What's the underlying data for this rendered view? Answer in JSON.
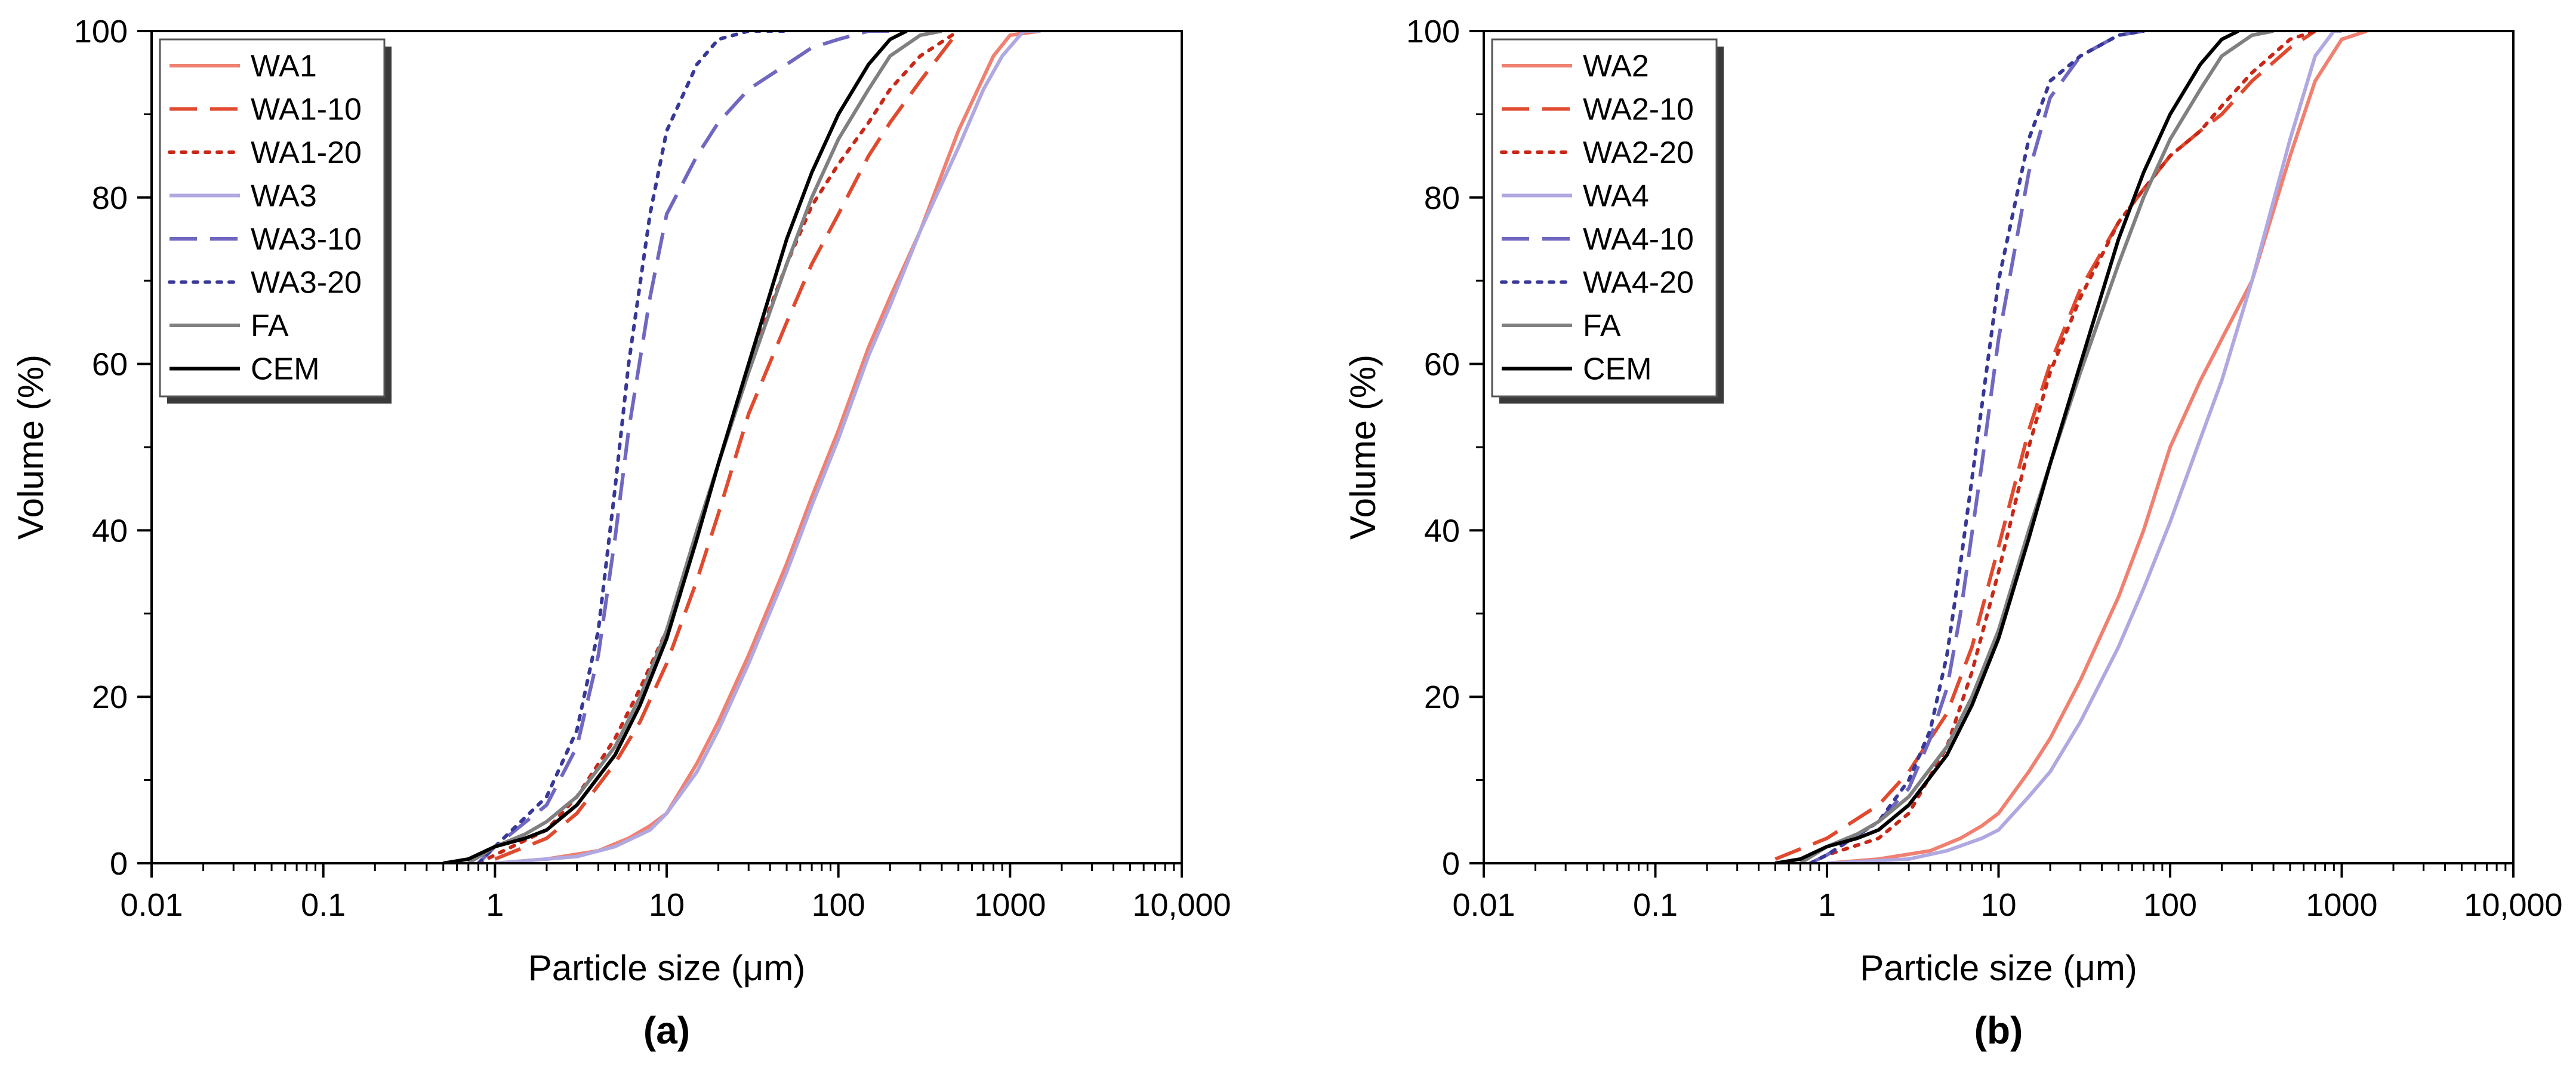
{
  "colors": {
    "red": "#f08070",
    "red_dark": "#e04a2e",
    "red_dot": "#c82818",
    "purple_light": "#b0a8e0",
    "purple": "#7068c0",
    "navy": "#383898",
    "gray": "#808080",
    "black": "#000000"
  },
  "chart_data": [
    {
      "type": "line",
      "panel_label": "(a)",
      "xlabel": "Particle size (μm)",
      "ylabel": "Volume (%)",
      "xscale": "log",
      "xlim": [
        0.01,
        10000
      ],
      "ylim": [
        0,
        100
      ],
      "x_tick_labels": [
        "0.01",
        "0.1",
        "1",
        "10",
        "100",
        "1000",
        "10,000"
      ],
      "y_tick_labels": [
        "0",
        "20",
        "40",
        "60",
        "80",
        "100"
      ],
      "legend_position": "top-left",
      "series": [
        {
          "name": "WA1",
          "color": "red",
          "style": "solid",
          "x": [
            1,
            2,
            4,
            6,
            8,
            10,
            15,
            20,
            30,
            50,
            70,
            100,
            150,
            200,
            300,
            500,
            800,
            1000,
            1500
          ],
          "y": [
            0,
            0.5,
            1.5,
            3,
            4.5,
            6,
            12,
            17,
            25,
            36,
            44,
            52,
            62,
            68,
            76,
            88,
            97,
            99.5,
            100
          ]
        },
        {
          "name": "WA1-10",
          "color": "red_dark",
          "style": "dashed",
          "x": [
            1,
            2,
            3,
            5,
            7,
            10,
            15,
            20,
            30,
            50,
            70,
            100,
            150,
            200,
            300,
            500
          ],
          "y": [
            0.5,
            3,
            6,
            12,
            17,
            24,
            34,
            42,
            54,
            65,
            72,
            78,
            85,
            89,
            94,
            100
          ]
        },
        {
          "name": "WA1-20",
          "color": "red_dot",
          "style": "dotted",
          "x": [
            0.8,
            1,
            2,
            3,
            5,
            7,
            10,
            15,
            20,
            30,
            50,
            70,
            100,
            150,
            200,
            300,
            500
          ],
          "y": [
            0,
            1,
            4,
            8,
            15,
            21,
            28,
            40,
            48,
            60,
            72,
            79,
            84,
            89,
            93,
            97,
            100
          ]
        },
        {
          "name": "WA3",
          "color": "purple_light",
          "style": "solid",
          "x": [
            1,
            3,
            5,
            8,
            10,
            15,
            20,
            30,
            50,
            70,
            100,
            150,
            200,
            300,
            500,
            700,
            900,
            1200,
            1500
          ],
          "y": [
            0,
            0.8,
            2,
            4,
            6,
            11,
            16,
            24,
            35,
            43,
            51,
            61,
            67,
            76,
            86,
            93,
            97,
            100,
            100
          ]
        },
        {
          "name": "WA3-10",
          "color": "purple",
          "style": "dashed",
          "x": [
            0.8,
            1,
            2,
            3,
            4,
            5,
            6,
            8,
            10,
            15,
            20,
            30,
            50,
            70,
            100,
            150,
            200
          ],
          "y": [
            0,
            2,
            7,
            14,
            25,
            39,
            52,
            68,
            78,
            85,
            89,
            93,
            96,
            98,
            99,
            100,
            100
          ]
        },
        {
          "name": "WA3-20",
          "color": "navy",
          "style": "dotted",
          "x": [
            0.8,
            1,
            2,
            3,
            4,
            5,
            6,
            8,
            10,
            15,
            20,
            30,
            50
          ],
          "y": [
            0,
            2,
            8,
            16,
            28,
            45,
            60,
            78,
            88,
            96,
            99,
            100,
            100
          ]
        },
        {
          "name": "FA",
          "color": "gray",
          "style": "solid",
          "x": [
            0.7,
            1,
            1.5,
            2,
            3,
            5,
            7,
            10,
            15,
            20,
            30,
            50,
            70,
            100,
            150,
            200,
            300,
            400
          ],
          "y": [
            0,
            2,
            3.5,
            5,
            8,
            14,
            20,
            28,
            40,
            48,
            59,
            72,
            80,
            87,
            93,
            97,
            99.5,
            100
          ]
        },
        {
          "name": "CEM",
          "color": "black",
          "style": "solid",
          "x": [
            0.5,
            0.7,
            1,
            1.5,
            2,
            3,
            5,
            7,
            10,
            15,
            20,
            30,
            50,
            70,
            100,
            150,
            200,
            250
          ],
          "y": [
            0,
            0.5,
            2,
            3,
            4,
            7,
            13,
            19,
            27,
            39,
            48,
            60,
            75,
            83,
            90,
            96,
            99,
            100
          ]
        }
      ]
    },
    {
      "type": "line",
      "panel_label": "(b)",
      "xlabel": "Particle size (μm)",
      "ylabel": "Volume (%)",
      "xscale": "log",
      "xlim": [
        0.01,
        10000
      ],
      "ylim": [
        0,
        100
      ],
      "x_tick_labels": [
        "0.01",
        "0.1",
        "1",
        "10",
        "100",
        "1000",
        "10,000"
      ],
      "y_tick_labels": [
        "0",
        "20",
        "40",
        "60",
        "80",
        "100"
      ],
      "legend_position": "top-left",
      "series": [
        {
          "name": "WA2",
          "color": "red",
          "style": "solid",
          "x": [
            1,
            2,
            4,
            6,
            8,
            10,
            15,
            20,
            30,
            50,
            70,
            100,
            150,
            200,
            300,
            500,
            700,
            1000,
            1400
          ],
          "y": [
            0,
            0.5,
            1.5,
            3,
            4.5,
            6,
            11,
            15,
            22,
            32,
            40,
            50,
            58,
            63,
            70,
            85,
            94,
            99,
            100
          ]
        },
        {
          "name": "WA2-10",
          "color": "red_dark",
          "style": "dashed",
          "x": [
            0.5,
            1,
            2,
            3,
            5,
            7,
            10,
            15,
            20,
            30,
            50,
            70,
            100,
            150,
            200,
            300,
            500,
            700
          ],
          "y": [
            0.5,
            3,
            7,
            11,
            18,
            26,
            38,
            52,
            60,
            69,
            77,
            81,
            85,
            88,
            90,
            94,
            98,
            100
          ]
        },
        {
          "name": "WA2-20",
          "color": "red_dot",
          "style": "dotted",
          "x": [
            0.8,
            1,
            2,
            3,
            5,
            7,
            10,
            15,
            20,
            30,
            50,
            70,
            100,
            150,
            200,
            300,
            500,
            700
          ],
          "y": [
            0,
            1,
            3,
            6,
            14,
            23,
            35,
            50,
            59,
            68,
            77,
            81,
            85,
            88,
            91,
            95,
            99,
            100
          ]
        },
        {
          "name": "WA4",
          "color": "purple_light",
          "style": "solid",
          "x": [
            1,
            3,
            5,
            8,
            10,
            15,
            20,
            30,
            50,
            70,
            100,
            150,
            200,
            300,
            500,
            700,
            900,
            1000
          ],
          "y": [
            0,
            0.5,
            1.5,
            3,
            4,
            8,
            11,
            17,
            26,
            33,
            41,
            51,
            58,
            70,
            87,
            97,
            100,
            100
          ]
        },
        {
          "name": "WA4-10",
          "color": "purple",
          "style": "dashed",
          "x": [
            0.8,
            1,
            2,
            3,
            4,
            5,
            6,
            8,
            10,
            15,
            20,
            30,
            50,
            70
          ],
          "y": [
            0,
            1,
            5,
            9,
            15,
            21,
            30,
            48,
            63,
            83,
            92,
            97,
            99.5,
            100
          ]
        },
        {
          "name": "WA4-20",
          "color": "navy",
          "style": "dotted",
          "x": [
            0.8,
            1,
            2,
            3,
            4,
            5,
            6,
            8,
            10,
            15,
            20,
            30,
            50,
            70
          ],
          "y": [
            0,
            1,
            5,
            10,
            16,
            25,
            36,
            55,
            70,
            87,
            94,
            97,
            99.5,
            100
          ]
        },
        {
          "name": "FA",
          "color": "gray",
          "style": "solid",
          "x": [
            0.7,
            1,
            1.5,
            2,
            3,
            5,
            7,
            10,
            15,
            20,
            30,
            50,
            70,
            100,
            150,
            200,
            300,
            400
          ],
          "y": [
            0,
            2,
            3.5,
            5,
            8,
            14,
            20,
            28,
            40,
            48,
            59,
            72,
            80,
            87,
            93,
            97,
            99.5,
            100
          ]
        },
        {
          "name": "CEM",
          "color": "black",
          "style": "solid",
          "x": [
            0.5,
            0.7,
            1,
            1.5,
            2,
            3,
            5,
            7,
            10,
            15,
            20,
            30,
            50,
            70,
            100,
            150,
            200,
            250
          ],
          "y": [
            0,
            0.5,
            2,
            3,
            4,
            7,
            13,
            19,
            27,
            39,
            48,
            60,
            75,
            83,
            90,
            96,
            99,
            100
          ]
        }
      ]
    }
  ]
}
